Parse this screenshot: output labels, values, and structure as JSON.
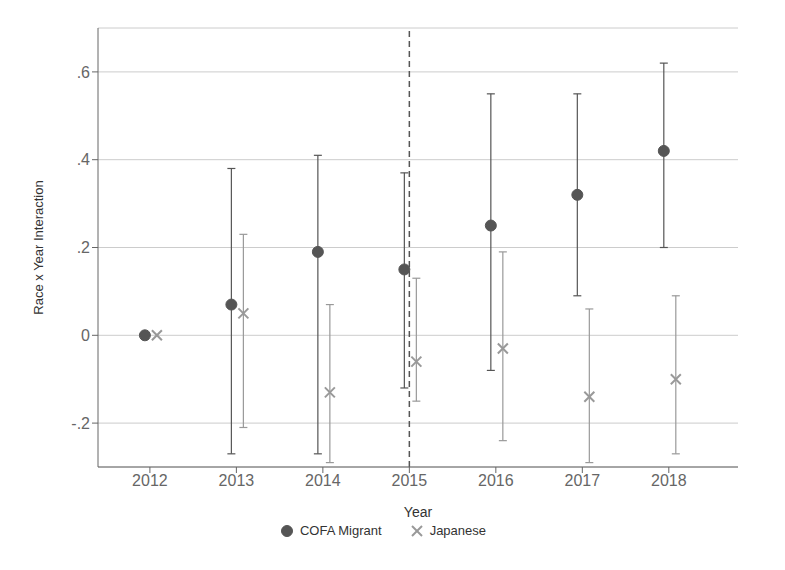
{
  "chart_data": {
    "type": "scatter",
    "xlabel": "Year",
    "ylabel": "Race x Year Interaction",
    "x": [
      2012,
      2013,
      2014,
      2015,
      2016,
      2017,
      2018
    ],
    "xlim": [
      2011.4,
      2018.8
    ],
    "xticks": [
      2012,
      2013,
      2014,
      2015,
      2016,
      2017,
      2018
    ],
    "ylim": [
      -0.3,
      0.7
    ],
    "yticks": [
      {
        "value": -0.2,
        "label": "-.2"
      },
      0,
      {
        "value": 0.2,
        "label": ".2"
      },
      {
        "value": 0.4,
        "label": ".4"
      },
      {
        "value": 0.6,
        "label": ".6"
      }
    ],
    "grid": true,
    "legend": "bottom",
    "vline": 2015,
    "series": [
      {
        "name": "COFA Migrant",
        "color": "#555555",
        "marker": "circle",
        "values": [
          0,
          0.07,
          0.19,
          0.15,
          0.25,
          0.32,
          0.42
        ],
        "y_lo": [
          0,
          -0.27,
          -0.27,
          -0.12,
          -0.08,
          0.09,
          0.2
        ],
        "y_hi": [
          0,
          0.38,
          0.41,
          0.37,
          0.55,
          0.55,
          0.62
        ]
      },
      {
        "name": "Japanese",
        "color": "#999999",
        "marker": "x",
        "values": [
          0,
          0.05,
          -0.13,
          -0.06,
          -0.03,
          -0.14,
          -0.1
        ],
        "y_lo": [
          0,
          -0.21,
          -0.29,
          -0.15,
          -0.24,
          -0.29,
          -0.27
        ],
        "y_hi": [
          0,
          0.23,
          0.07,
          0.13,
          0.19,
          0.06,
          0.09
        ]
      }
    ]
  }
}
